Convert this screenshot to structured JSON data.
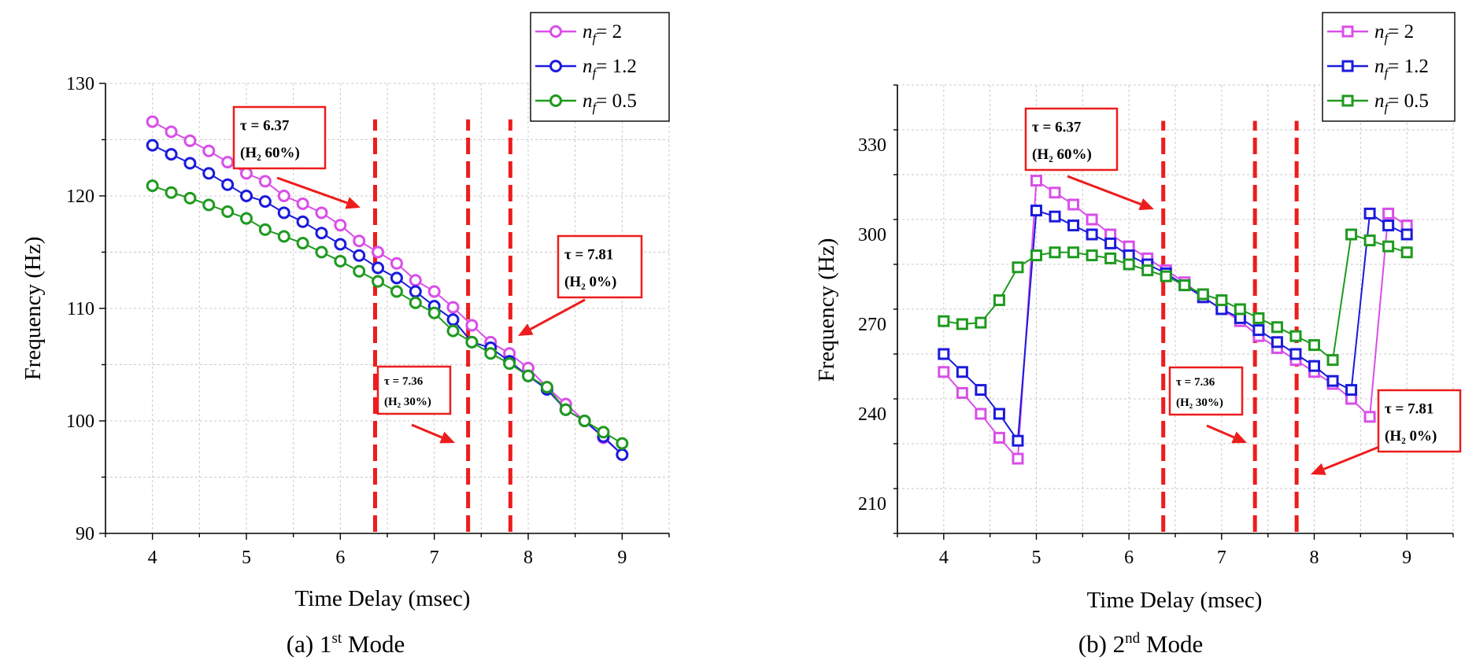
{
  "chart_data": [
    {
      "type": "line",
      "caption": "(a) 1",
      "caption_sup": "st",
      "caption_suffix": " Mode",
      "xlabel": "Time Delay (msec)",
      "ylabel": "Frequency (Hz)",
      "xlim": [
        3.5,
        9.5
      ],
      "ylim": [
        90,
        130
      ],
      "xticks": [
        4,
        5,
        6,
        7,
        8,
        9
      ],
      "yticks": [
        90,
        100,
        110,
        120,
        130
      ],
      "grid": true,
      "marker": "circle",
      "legend_position": "top-right",
      "series": [
        {
          "name_prefix": "n",
          "name_sub": "f",
          "name_suffix": "=  2",
          "color": "#d94fe8",
          "x": [
            4,
            4.2,
            4.4,
            4.6,
            4.8,
            5,
            5.2,
            5.4,
            5.6,
            5.8,
            6,
            6.2,
            6.4,
            6.6,
            6.8,
            7,
            7.2,
            7.4,
            7.6,
            7.8,
            8,
            8.2,
            8.4,
            8.6,
            8.8,
            9
          ],
          "y": [
            126.6,
            125.7,
            124.9,
            124,
            123,
            122,
            121.3,
            120,
            119.3,
            118.5,
            117.4,
            116,
            115,
            114,
            112.5,
            111.5,
            110.1,
            108.5,
            107,
            106,
            104.7,
            103,
            101.5,
            100,
            98.5,
            97
          ]
        },
        {
          "name_prefix": "n",
          "name_sub": "f",
          "name_suffix": "= 1.2",
          "color": "#1a1adc",
          "x": [
            4,
            4.2,
            4.4,
            4.6,
            4.8,
            5,
            5.2,
            5.4,
            5.6,
            5.8,
            6,
            6.2,
            6.4,
            6.6,
            6.8,
            7,
            7.2,
            7.4,
            7.6,
            7.8,
            8,
            8.2,
            8.4,
            8.6,
            8.8,
            9
          ],
          "y": [
            124.5,
            123.7,
            122.9,
            122,
            121,
            120,
            119.5,
            118.5,
            117.7,
            116.7,
            115.7,
            114.7,
            113.6,
            112.7,
            111.5,
            110.2,
            109,
            107,
            106.5,
            105.3,
            104,
            102.8,
            101,
            100,
            98.6,
            97
          ]
        },
        {
          "name_prefix": "n",
          "name_sub": "f",
          "name_suffix": "= 0.5",
          "color": "#1e9a1e",
          "x": [
            4,
            4.2,
            4.4,
            4.6,
            4.8,
            5,
            5.2,
            5.4,
            5.6,
            5.8,
            6,
            6.2,
            6.4,
            6.6,
            6.8,
            7,
            7.2,
            7.4,
            7.6,
            7.8,
            8,
            8.2,
            8.4,
            8.6,
            8.8,
            9
          ],
          "y": [
            120.9,
            120.3,
            119.8,
            119.2,
            118.6,
            118,
            117,
            116.4,
            115.8,
            115,
            114.2,
            113.3,
            112.4,
            111.5,
            110.5,
            109.6,
            108,
            107,
            106,
            105.1,
            104,
            103,
            101,
            100,
            99,
            98
          ]
        }
      ],
      "vlines": [
        6.37,
        7.36,
        7.81
      ],
      "annotations": [
        {
          "line1": "τ = 6.37",
          "line2": "(H₂ 60%)"
        },
        {
          "line1": "τ = 7.36",
          "line2": "(H₂ 30%)"
        },
        {
          "line1": "τ = 7.81",
          "line2": "(H₂ 0%)"
        }
      ]
    },
    {
      "type": "line",
      "caption": "(b) 2",
      "caption_sup": "nd",
      "caption_suffix": " Mode",
      "xlabel": "Time Delay (msec)",
      "ylabel": "Frequency (Hz)",
      "xlim": [
        3.5,
        9.5
      ],
      "ylim": [
        200,
        350
      ],
      "xticks": [
        4,
        5,
        6,
        7,
        8,
        9
      ],
      "yticks": [
        210,
        240,
        270,
        300,
        330
      ],
      "grid": true,
      "marker": "square",
      "legend_position": "top-right",
      "series": [
        {
          "name_prefix": "n",
          "name_sub": "f",
          "name_suffix": "=  2",
          "color": "#d94fe8",
          "x": [
            4,
            4.2,
            4.4,
            4.6,
            4.8,
            5,
            5.2,
            5.4,
            5.6,
            5.8,
            6,
            6.2,
            6.4,
            6.6,
            6.8,
            7,
            7.2,
            7.4,
            7.6,
            7.8,
            8,
            8.2,
            8.4,
            8.6,
            8.8,
            9
          ],
          "y": [
            254,
            247,
            240,
            232,
            225,
            318,
            314,
            310,
            305,
            300,
            296,
            292,
            288,
            284,
            279,
            275,
            271,
            266,
            262,
            258,
            254,
            250,
            245,
            239,
            307,
            303
          ]
        },
        {
          "name_prefix": "n",
          "name_sub": "f",
          "name_suffix": "= 1.2",
          "color": "#1a1adc",
          "x": [
            4,
            4.2,
            4.4,
            4.6,
            4.8,
            5,
            5.2,
            5.4,
            5.6,
            5.8,
            6,
            6.2,
            6.4,
            6.6,
            6.8,
            7,
            7.2,
            7.4,
            7.6,
            7.8,
            8,
            8.2,
            8.4,
            8.6,
            8.8,
            9
          ],
          "y": [
            260,
            254,
            248,
            240,
            231,
            308,
            306,
            303,
            300,
            297,
            293,
            290,
            287,
            283,
            279,
            275,
            272,
            268,
            264,
            260,
            256,
            251,
            248,
            307,
            303,
            300
          ]
        },
        {
          "name_prefix": "n",
          "name_sub": "f",
          "name_suffix": "= 0.5",
          "color": "#1e9a1e",
          "x": [
            4,
            4.2,
            4.4,
            4.6,
            4.8,
            5,
            5.2,
            5.4,
            5.6,
            5.8,
            6,
            6.2,
            6.4,
            6.6,
            6.8,
            7,
            7.2,
            7.4,
            7.6,
            7.8,
            8,
            8.2,
            8.4,
            8.6,
            8.8,
            9
          ],
          "y": [
            271,
            270,
            270.5,
            278,
            289,
            293,
            294,
            294,
            293,
            292,
            290,
            288,
            286,
            283,
            280,
            278,
            275,
            272,
            269,
            266,
            263,
            258,
            300,
            298,
            296,
            294
          ]
        }
      ],
      "vlines": [
        6.37,
        7.36,
        7.81
      ],
      "annotations": [
        {
          "line1": "τ = 6.37",
          "line2": "(H₂ 60%)"
        },
        {
          "line1": "τ = 7.36",
          "line2": "(H₂ 30%)"
        },
        {
          "line1": "τ = 7.81",
          "line2": "(H₂ 0%)"
        }
      ]
    }
  ],
  "colors": {
    "reference_line": "#ee1c1c",
    "grid": "#c8c8c8",
    "axis": "#000000"
  }
}
